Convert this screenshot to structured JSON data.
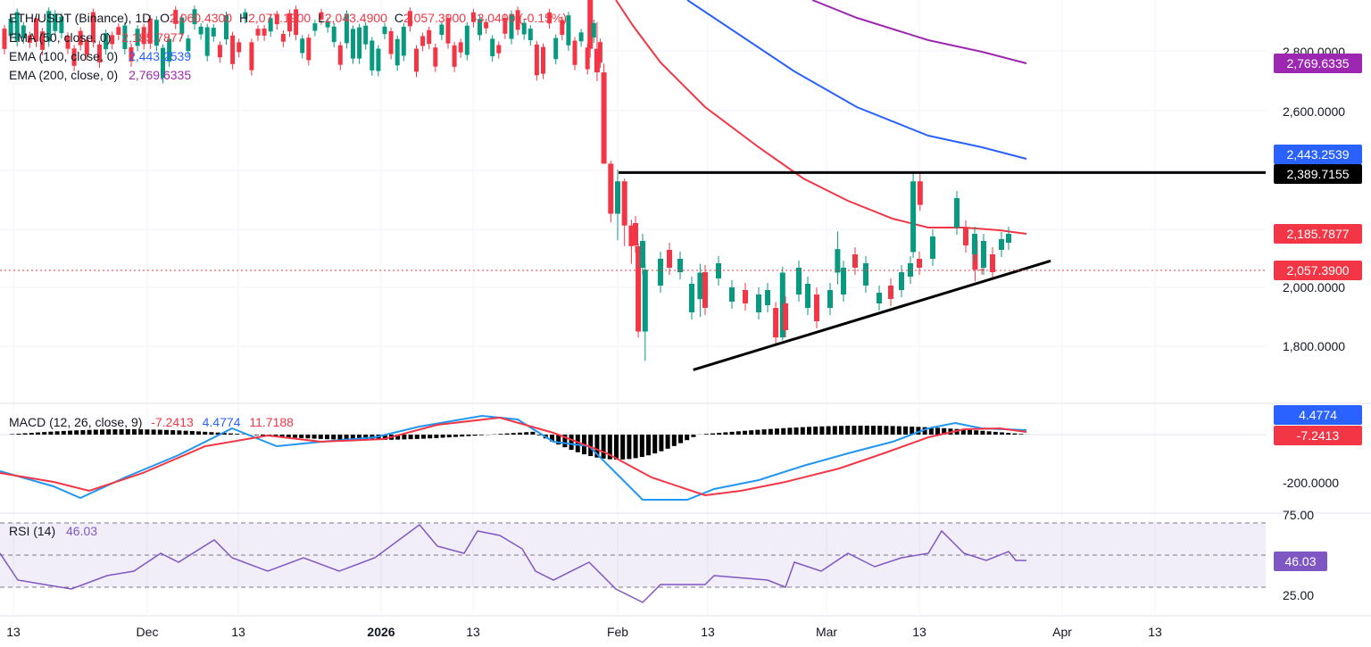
{
  "header": {
    "symbol": "ETH/USDT (Binance), 1D",
    "open_label": "O",
    "open": "2,060.4300",
    "high_label": "H",
    "high": "2,077.1900",
    "low_label": "L",
    "low": "2,043.4900",
    "close_label": "C",
    "close": "2,057.3900",
    "change": "-3.0400 (-0.15%)"
  },
  "indicators": {
    "ema50": {
      "label": "EMA (50, close, 0)",
      "value": "2,185.7877",
      "color": "#f23645"
    },
    "ema100": {
      "label": "EMA (100, close, 0)",
      "value": "2,443.2539",
      "color": "#2962ff"
    },
    "ema200": {
      "label": "EMA (200, close, 0)",
      "value": "2,769.6335",
      "color": "#9c27b0"
    },
    "macd": {
      "label": "MACD (12, 26, close, 9)",
      "histogram": "-7.2413",
      "macd": "4.4774",
      "signal": "11.7188"
    },
    "rsi": {
      "label": "RSI (14)",
      "value": "46.03",
      "color": "#7e57c2"
    }
  },
  "price_axis": {
    "ticks": [
      "2,800.0000",
      "2,600.0000",
      "2,000.0000",
      "1,800.0000"
    ],
    "tags": {
      "ema200": "2,769.6335",
      "ema100": "2,443.2539",
      "resistance": "2,389.7155",
      "ema50": "2,185.7877",
      "last": "2,057.3900"
    }
  },
  "macd_axis": {
    "ticks": [
      "-200.0000"
    ],
    "tags": {
      "macd": "4.4774",
      "histogram": "-7.2413"
    }
  },
  "rsi_axis": {
    "ticks": [
      "75.00",
      "25.00"
    ],
    "tag": "46.03"
  },
  "time_axis": [
    "13",
    "Dec",
    "13",
    "2026",
    "13",
    "Feb",
    "13",
    "Mar",
    "13",
    "Apr",
    "13"
  ],
  "colors": {
    "up": "#089981",
    "down": "#f23645",
    "trendline": "#000000"
  },
  "chart_data": {
    "type": "candlestick",
    "symbol": "ETH/USDT",
    "interval": "1D",
    "candles_recent": [
      {
        "date": "2026-01-28",
        "o": 3010,
        "h": 3035,
        "l": 2780,
        "c": 2810
      },
      {
        "date": "2026-01-29",
        "o": 2810,
        "h": 2900,
        "l": 2700,
        "c": 2730
      },
      {
        "date": "2026-01-30",
        "o": 2730,
        "h": 2760,
        "l": 2580,
        "c": 2420
      },
      {
        "date": "2026-01-31",
        "o": 2420,
        "h": 2430,
        "l": 2220,
        "c": 2250
      },
      {
        "date": "2026-02-01",
        "o": 2250,
        "h": 2400,
        "l": 2160,
        "c": 2360
      },
      {
        "date": "2026-02-02",
        "o": 2360,
        "h": 2370,
        "l": 2140,
        "c": 2210
      },
      {
        "date": "2026-02-03",
        "o": 2210,
        "h": 2230,
        "l": 2080,
        "c": 2140
      },
      {
        "date": "2026-02-04",
        "o": 2140,
        "h": 2150,
        "l": 1830,
        "c": 1850
      },
      {
        "date": "2026-02-05",
        "o": 1850,
        "h": 2080,
        "l": 1750,
        "c": 2060
      },
      {
        "date": "2026-02-13",
        "o": 1960,
        "h": 2080,
        "l": 1900,
        "c": 2050
      },
      {
        "date": "2026-02-24",
        "o": 1930,
        "h": 1950,
        "l": 1810,
        "c": 1830
      },
      {
        "date": "2026-02-25",
        "o": 1830,
        "h": 2070,
        "l": 1820,
        "c": 2050
      },
      {
        "date": "2026-03-05",
        "o": 2050,
        "h": 2190,
        "l": 2010,
        "c": 2130
      },
      {
        "date": "2026-03-16",
        "o": 2120,
        "h": 2390,
        "l": 2100,
        "c": 2360
      },
      {
        "date": "2026-03-17",
        "o": 2360,
        "h": 2390,
        "l": 2260,
        "c": 2280
      },
      {
        "date": "2026-03-25",
        "o": 2160,
        "h": 2180,
        "l": 2020,
        "c": 2060
      },
      {
        "date": "2026-03-26",
        "o": 2060.43,
        "h": 2077.19,
        "l": 2043.49,
        "c": 2057.39
      }
    ],
    "resistance_level": 2389.7155,
    "support_trendline": [
      {
        "date": "2026-02-12",
        "price": 1720
      },
      {
        "date": "2026-04-05",
        "price": 2090
      }
    ],
    "ema": {
      "ema50": 2185.7877,
      "ema100": 2443.2539,
      "ema200": 2769.6335
    },
    "macd": {
      "macd": 4.4774,
      "signal": 11.7188,
      "histogram": -7.2413
    },
    "rsi": {
      "value": 46.03,
      "upper_band": 70,
      "lower_band": 30
    }
  }
}
